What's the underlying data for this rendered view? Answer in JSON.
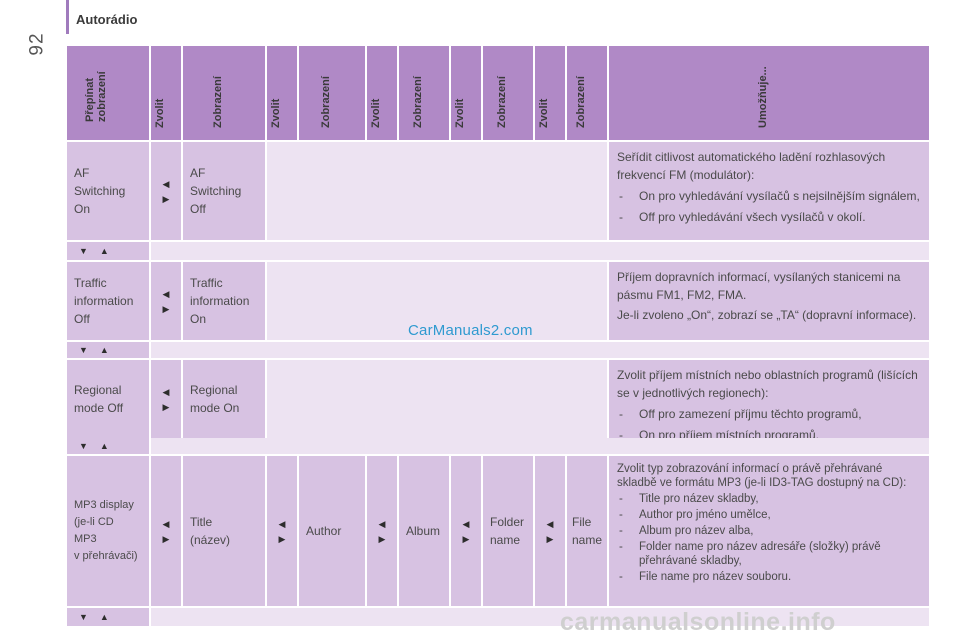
{
  "header": {
    "page_number": "92",
    "section": "Autorádio"
  },
  "columns": [
    "Přepínat\nzobrazení",
    "Zvolit",
    "Zobrazení",
    "Zvolit",
    "Zobrazení",
    "Zvolit",
    "Zobrazení",
    "Zvolit",
    "Zobrazení",
    "Zvolit",
    "Zobrazení",
    "Umožňuje..."
  ],
  "glyphs": {
    "left": "◀",
    "right": "▶",
    "down": "▼",
    "up": "▲"
  },
  "rows": [
    {
      "from": "AF\nSwitching\nOn",
      "to": "AF\nSwitching\nOff",
      "intro": "Seřídit citlivost automatického ladění rozhlasových frekvencí FM (modulátor):",
      "items": [
        "On pro vyhledávání vysílačů s nejsilnějším signálem,",
        "Off pro vyhledávání všech vysílačů v okolí."
      ]
    },
    {
      "from": "Traffic\ninformation\nOff",
      "to": "Traffic\ninformation\nOn",
      "intro": "Příjem dopravních informací, vysílaných stanicemi na pásmu FM1, FM2, FMA.",
      "intro2": "Je-li zvoleno „On“, zobrazí se „TA“ (dopravní informace).",
      "items": []
    },
    {
      "from": "Regional\nmode Off",
      "to": "Regional\nmode On",
      "intro": "Zvolit příjem místních nebo oblastních programů (lišících se v jednotlivých regionech):",
      "items": [
        "Off pro zamezení příjmu těchto programů,",
        "On pro příjem místních programů."
      ]
    },
    {
      "from": "MP3 display\n(je-li CD\nMP3\nv přehrávači)",
      "opts": [
        "Title\n(název)",
        "Author",
        "Album",
        "Folder\nname",
        "File\nname"
      ],
      "intro": "Zvolit typ zobrazování informací o právě přehrávané skladbě ve formátu MP3 (je-li ID3-TAG dostupný na CD):",
      "items": [
        "Title pro název skladby,",
        "Author pro jméno umělce,",
        "Album pro název alba,",
        "Folder name pro název adresáře (složky) právě přehrávané skladby,",
        "File name pro název souboru."
      ]
    }
  ],
  "watermarks": {
    "mid": "CarManuals2.com",
    "foot": "carmanualsonline.info"
  }
}
